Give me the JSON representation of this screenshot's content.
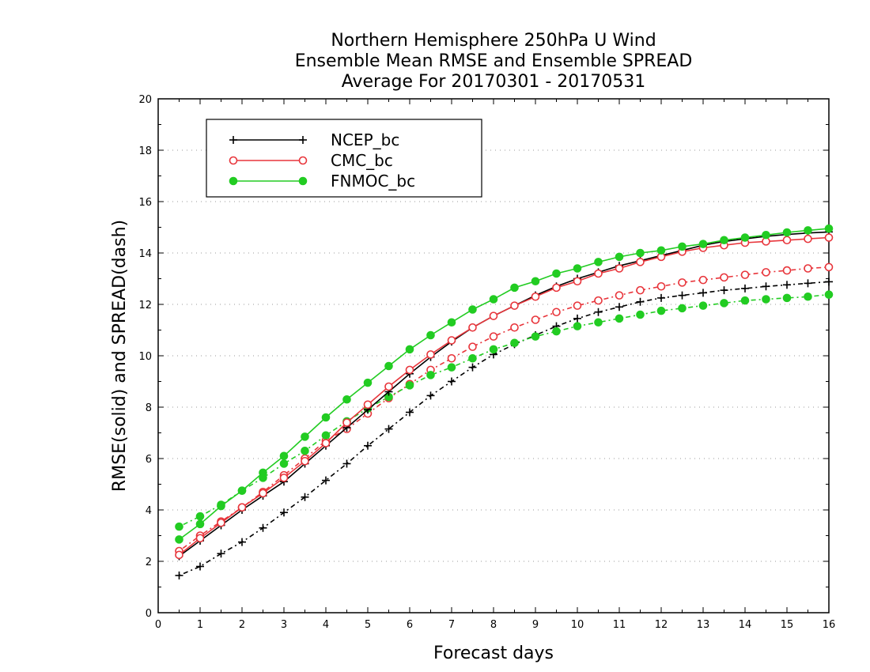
{
  "chart_data": {
    "type": "line",
    "title": [
      "Northern Hemisphere 250hPa U Wind",
      "Ensemble Mean RMSE and Ensemble SPREAD",
      "Average For 20170301 - 20170531"
    ],
    "xlabel": "Forecast days",
    "ylabel": "RMSE(solid) and SPREAD(dash)",
    "xlim": [
      0,
      16
    ],
    "ylim": [
      0,
      20
    ],
    "xticks": [
      0,
      1,
      2,
      3,
      4,
      5,
      6,
      7,
      8,
      9,
      10,
      11,
      12,
      13,
      14,
      15,
      16
    ],
    "yticks": [
      0,
      2,
      4,
      6,
      8,
      10,
      12,
      14,
      16,
      18,
      20
    ],
    "grid": true,
    "legend_position": "top-left",
    "x": [
      0.5,
      1,
      1.5,
      2,
      2.5,
      3,
      3.5,
      4,
      4.5,
      5,
      5.5,
      6,
      6.5,
      7,
      7.5,
      8,
      8.5,
      9,
      9.5,
      10,
      10.5,
      11,
      11.5,
      12,
      12.5,
      13,
      13.5,
      14,
      14.5,
      15,
      15.5,
      16
    ],
    "series": [
      {
        "name": "NCEP_bc",
        "color": "#000000",
        "marker": "plus",
        "rmse": [
          2.2,
          2.8,
          3.4,
          4.0,
          4.55,
          5.1,
          5.8,
          6.5,
          7.2,
          7.9,
          8.6,
          9.3,
          9.95,
          10.55,
          11.1,
          11.55,
          11.95,
          12.35,
          12.7,
          13.0,
          13.25,
          13.5,
          13.7,
          13.9,
          14.1,
          14.3,
          14.45,
          14.55,
          14.65,
          14.72,
          14.78,
          14.82
        ],
        "spread": [
          1.45,
          1.8,
          2.3,
          2.75,
          3.3,
          3.9,
          4.5,
          5.15,
          5.8,
          6.5,
          7.15,
          7.8,
          8.45,
          9.0,
          9.55,
          10.05,
          10.45,
          10.8,
          11.15,
          11.45,
          11.7,
          11.9,
          12.1,
          12.25,
          12.35,
          12.45,
          12.55,
          12.62,
          12.7,
          12.76,
          12.82,
          12.88
        ]
      },
      {
        "name": "CMC_bc",
        "color": "#e8353b",
        "marker": "open-circle",
        "rmse": [
          2.25,
          2.9,
          3.5,
          4.1,
          4.65,
          5.25,
          5.9,
          6.6,
          7.4,
          8.1,
          8.8,
          9.45,
          10.05,
          10.6,
          11.1,
          11.55,
          11.95,
          12.3,
          12.65,
          12.9,
          13.2,
          13.4,
          13.65,
          13.85,
          14.05,
          14.2,
          14.3,
          14.4,
          14.45,
          14.5,
          14.55,
          14.6
        ],
        "spread": [
          2.4,
          3.0,
          3.55,
          4.1,
          4.7,
          5.35,
          6.0,
          6.7,
          7.15,
          7.75,
          8.35,
          8.9,
          9.45,
          9.9,
          10.35,
          10.75,
          11.1,
          11.4,
          11.7,
          11.95,
          12.15,
          12.35,
          12.55,
          12.7,
          12.85,
          12.95,
          13.05,
          13.15,
          13.25,
          13.32,
          13.4,
          13.45
        ]
      },
      {
        "name": "FNMOC_bc",
        "color": "#22cc22",
        "marker": "filled-circle",
        "rmse": [
          2.85,
          3.45,
          4.15,
          4.75,
          5.45,
          6.1,
          6.85,
          7.6,
          8.3,
          8.95,
          9.6,
          10.25,
          10.8,
          11.3,
          11.8,
          12.2,
          12.65,
          12.9,
          13.2,
          13.4,
          13.65,
          13.85,
          14.0,
          14.1,
          14.25,
          14.35,
          14.5,
          14.6,
          14.7,
          14.8,
          14.88,
          14.95
        ],
        "spread": [
          3.35,
          3.75,
          4.2,
          4.75,
          5.25,
          5.8,
          6.3,
          6.9,
          7.45,
          7.95,
          8.4,
          8.85,
          9.25,
          9.55,
          9.9,
          10.25,
          10.5,
          10.75,
          10.95,
          11.15,
          11.3,
          11.45,
          11.6,
          11.75,
          11.85,
          11.95,
          12.05,
          12.15,
          12.2,
          12.25,
          12.3,
          12.38
        ]
      }
    ]
  }
}
